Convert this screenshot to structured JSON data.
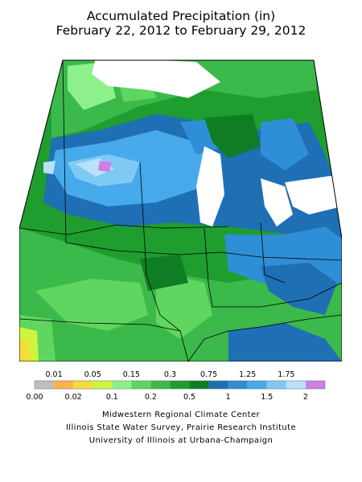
{
  "title_line1": "Accumulated Precipitation (in)",
  "title_line2": "February 22, 2012 to February 29, 2012",
  "legend": {
    "colors": [
      "#bfbfbf",
      "#ffb347",
      "#f5dc3c",
      "#cdf53c",
      "#8ef08a",
      "#5fd65f",
      "#3cb94b",
      "#1f9d2f",
      "#0f7d23",
      "#1f6fb5",
      "#2f8fd6",
      "#46aaeb",
      "#7fcaf5",
      "#b9e1fa",
      "#cc80e6"
    ],
    "labels_top": [
      "0.01",
      "0.05",
      "0.15",
      "0.3",
      "0.75",
      "1.25",
      "1.75"
    ],
    "labels_bottom": [
      "0.00",
      "0.02",
      "0.1",
      "0.2",
      "0.5",
      "1",
      "1.5",
      "2"
    ]
  },
  "credits": [
    "Midwestern Regional Climate Center",
    "Illinois State Water Survey, Prairie Research Institute",
    "University of Illinois at Urbana-Champaign"
  ]
}
